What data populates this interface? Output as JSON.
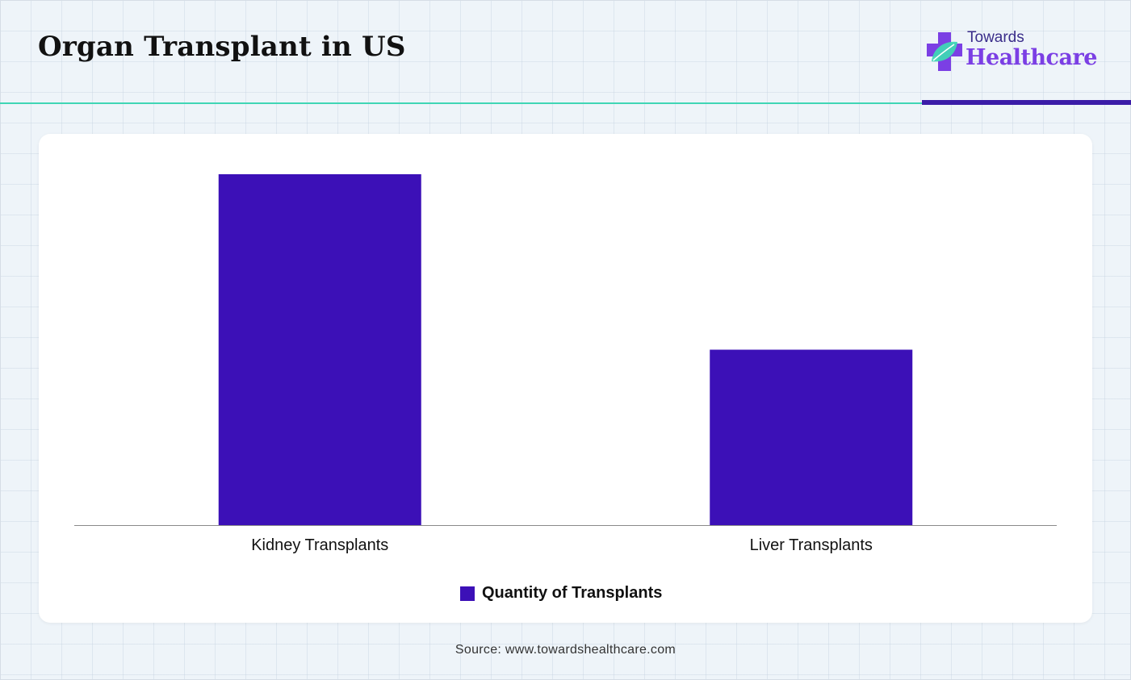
{
  "header": {
    "title": "Organ Transplant in US"
  },
  "logo": {
    "line1": "Towards",
    "line2": "Healthcare",
    "icon": "medical-cross-leaf-icon"
  },
  "colors": {
    "bar": "#3c10b7",
    "accent_teal": "#3fd6b5",
    "accent_purple": "#3b1ca8"
  },
  "chart_data": {
    "type": "bar",
    "categories": [
      "Kidney Transplants",
      "Liver Transplants"
    ],
    "series": [
      {
        "name": "Quantity of Transplants",
        "values": [
          100,
          50
        ]
      }
    ],
    "title": "",
    "xlabel": "",
    "ylabel": "",
    "ylim": [
      0,
      100
    ],
    "grid": false,
    "legend_position": "bottom-center"
  },
  "footer": {
    "source": "Source: www.towardshealthcare.com"
  }
}
